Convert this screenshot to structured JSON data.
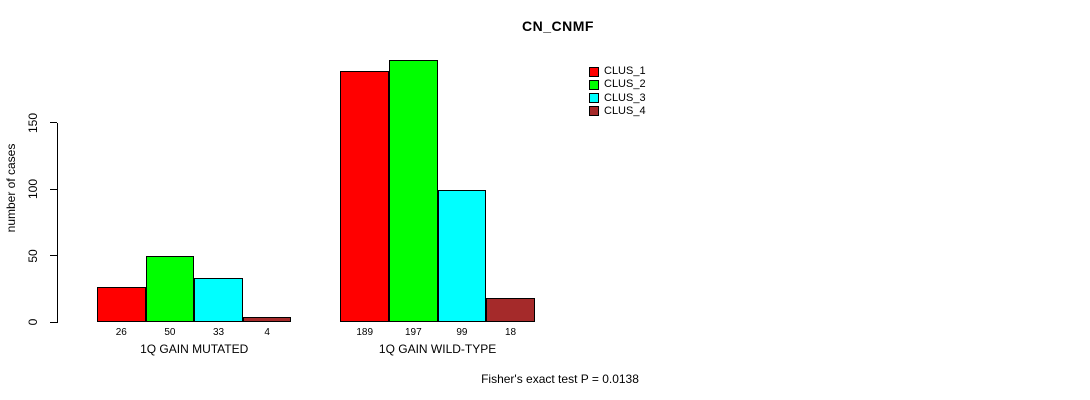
{
  "window": {
    "background": "#ffffff",
    "text_color": "#000000"
  },
  "chart_data": {
    "type": "bar",
    "title": "CN_CNMF",
    "xlabel": "",
    "ylabel": "number of cases",
    "ylim": [
      0,
      200
    ],
    "y_ticks": [
      0,
      50,
      100,
      150
    ],
    "grid": false,
    "legend_position": "top-right",
    "categories": [
      "1Q GAIN MUTATED",
      "1Q GAIN WILD-TYPE"
    ],
    "series": [
      {
        "name": "CLUS_1",
        "color": "#ff0000",
        "values": [
          26,
          189
        ]
      },
      {
        "name": "CLUS_2",
        "color": "#00ff00",
        "values": [
          50,
          197
        ]
      },
      {
        "name": "CLUS_3",
        "color": "#00ffff",
        "values": [
          33,
          99
        ]
      },
      {
        "name": "CLUS_4",
        "color": "#a52a2a",
        "values": [
          4,
          18
        ]
      }
    ],
    "bar_value_labels": [
      [
        "26",
        "50",
        "33",
        "4"
      ],
      [
        "189",
        "197",
        "99",
        "18"
      ]
    ],
    "annotation": "Fisher's exact test P = 0.0138"
  }
}
